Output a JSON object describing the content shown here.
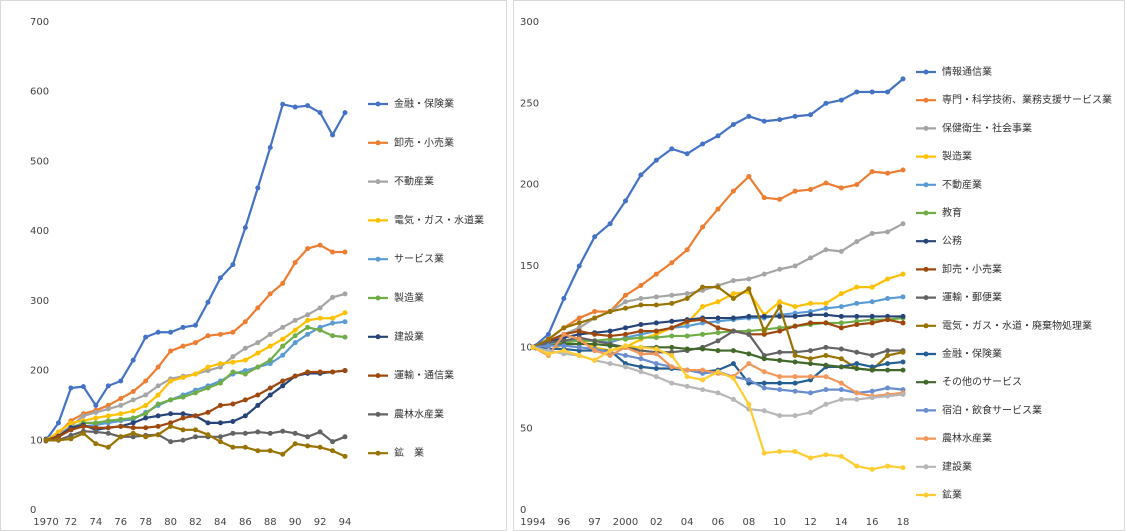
{
  "chart_data": [
    {
      "type": "line",
      "legend": "right",
      "categories": [
        "1970",
        null,
        "72",
        null,
        "74",
        null,
        "76",
        null,
        "78",
        null,
        "80",
        null,
        "82",
        null,
        "84",
        null,
        "86",
        null,
        "88",
        null,
        "90",
        null,
        "92",
        null,
        "94"
      ],
      "ylim": [
        0,
        700
      ],
      "yticks": [
        0,
        100,
        200,
        300,
        400,
        500,
        600,
        700
      ],
      "series": [
        {
          "name": "金融・保険業",
          "color": "#4472c4",
          "values": [
            100,
            125,
            175,
            177,
            150,
            178,
            185,
            215,
            248,
            255,
            255,
            262,
            265,
            298,
            333,
            352,
            405,
            462,
            520,
            582,
            578,
            580,
            570,
            538,
            570
          ]
        },
        {
          "name": "卸売・小売業",
          "color": "#ed7d31",
          "values": [
            100,
            110,
            128,
            138,
            143,
            150,
            160,
            170,
            185,
            205,
            228,
            235,
            240,
            250,
            252,
            255,
            270,
            290,
            310,
            325,
            355,
            375,
            380,
            370,
            370
          ]
        },
        {
          "name": "不動産業",
          "color": "#a5a5a5",
          "values": [
            100,
            108,
            120,
            135,
            140,
            145,
            150,
            158,
            165,
            178,
            188,
            192,
            195,
            200,
            205,
            220,
            232,
            240,
            252,
            262,
            272,
            280,
            290,
            305,
            310
          ]
        },
        {
          "name": "電気・ガス・水道業",
          "color": "#ffc000",
          "values": [
            100,
            112,
            125,
            128,
            132,
            135,
            138,
            142,
            150,
            165,
            185,
            190,
            195,
            205,
            210,
            212,
            215,
            225,
            235,
            245,
            258,
            272,
            275,
            275,
            283
          ]
        },
        {
          "name": "サービス業",
          "color": "#5b9bd5",
          "values": [
            100,
            105,
            115,
            120,
            122,
            125,
            128,
            130,
            140,
            150,
            158,
            165,
            172,
            178,
            185,
            195,
            200,
            205,
            210,
            222,
            240,
            252,
            262,
            268,
            270
          ]
        },
        {
          "name": "製造業",
          "color": "#70ad47",
          "values": [
            100,
            104,
            118,
            125,
            125,
            128,
            130,
            132,
            138,
            152,
            158,
            162,
            168,
            175,
            182,
            198,
            195,
            205,
            215,
            235,
            250,
            262,
            258,
            250,
            248
          ]
        },
        {
          "name": "建設業",
          "color": "#264478",
          "values": [
            100,
            106,
            118,
            122,
            115,
            118,
            120,
            125,
            132,
            135,
            138,
            138,
            135,
            125,
            125,
            127,
            135,
            150,
            165,
            178,
            192,
            196,
            196,
            198,
            200
          ]
        },
        {
          "name": "運輸・通信業",
          "color": "#9e480e",
          "values": [
            100,
            105,
            115,
            120,
            118,
            118,
            120,
            118,
            118,
            120,
            125,
            132,
            135,
            140,
            150,
            152,
            158,
            165,
            175,
            185,
            192,
            198,
            198,
            198,
            200
          ]
        },
        {
          "name": "農林水産業",
          "color": "#636363",
          "values": [
            100,
            100,
            107,
            113,
            112,
            110,
            105,
            105,
            107,
            108,
            98,
            100,
            105,
            105,
            105,
            110,
            110,
            112,
            110,
            113,
            110,
            105,
            112,
            98,
            105
          ]
        },
        {
          "name": "鉱　業",
          "color": "#997300",
          "values": [
            100,
            100,
            102,
            110,
            95,
            90,
            105,
            110,
            105,
            108,
            120,
            115,
            115,
            108,
            98,
            90,
            90,
            85,
            85,
            80,
            95,
            92,
            90,
            85,
            77
          ]
        }
      ]
    },
    {
      "type": "line",
      "legend": "right",
      "categories": [
        "1994",
        null,
        "96",
        null,
        "97",
        null,
        "2000",
        null,
        "02",
        null,
        "04",
        null,
        "06",
        null,
        "08",
        null,
        "10",
        null,
        "12",
        null,
        "14",
        null,
        "16",
        null,
        "18"
      ],
      "ylim": [
        0,
        300
      ],
      "yticks": [
        0,
        50,
        100,
        150,
        200,
        250,
        300
      ],
      "series": [
        {
          "name": "情報通信業",
          "color": "#4472c4",
          "values": [
            100,
            108,
            130,
            150,
            168,
            176,
            190,
            206,
            215,
            222,
            219,
            225,
            230,
            237,
            242,
            239,
            240,
            242,
            243,
            250,
            252,
            257,
            257,
            257,
            265
          ]
        },
        {
          "name": "専門・科学技術、業務支援サービス業",
          "color": "#ed7d31",
          "values": [
            100,
            105,
            112,
            118,
            122,
            122,
            132,
            138,
            145,
            152,
            160,
            174,
            185,
            196,
            205,
            192,
            191,
            196,
            197,
            201,
            198,
            200,
            208,
            207,
            209
          ]
        },
        {
          "name": "保健衛生・社会事業",
          "color": "#a5a5a5",
          "values": [
            100,
            104,
            108,
            112,
            118,
            122,
            128,
            130,
            131,
            132,
            133,
            135,
            138,
            141,
            142,
            145,
            148,
            150,
            155,
            160,
            159,
            165,
            170,
            171,
            176
          ]
        },
        {
          "name": "製造業",
          "color": "#ffc000",
          "values": [
            100,
            98,
            102,
            105,
            100,
            98,
            100,
            105,
            108,
            112,
            115,
            125,
            128,
            133,
            134,
            120,
            128,
            125,
            127,
            127,
            133,
            137,
            137,
            142,
            145
          ]
        },
        {
          "name": "不動産業",
          "color": "#5b9bd5",
          "values": [
            100,
            102,
            104,
            105,
            104,
            103,
            106,
            108,
            110,
            112,
            113,
            115,
            116,
            117,
            118,
            118,
            120,
            121,
            122,
            124,
            125,
            127,
            128,
            130,
            131
          ]
        },
        {
          "name": "教育",
          "color": "#70ad47",
          "values": [
            100,
            101,
            103,
            104,
            104,
            105,
            105,
            106,
            106,
            107,
            107,
            108,
            109,
            110,
            110,
            111,
            112,
            113,
            114,
            115,
            115,
            116,
            117,
            117,
            118
          ]
        },
        {
          "name": "公務",
          "color": "#264478",
          "values": [
            100,
            103,
            106,
            108,
            109,
            110,
            112,
            114,
            115,
            116,
            117,
            118,
            118,
            118,
            119,
            119,
            119,
            119,
            120,
            120,
            119,
            119,
            119,
            119,
            119
          ]
        },
        {
          "name": "卸売・小売業",
          "color": "#9e480e",
          "values": [
            100,
            104,
            108,
            110,
            108,
            107,
            108,
            110,
            110,
            112,
            116,
            117,
            112,
            110,
            108,
            108,
            110,
            113,
            115,
            115,
            112,
            114,
            115,
            117,
            115
          ]
        },
        {
          "name": "運輸・郵便業",
          "color": "#636363",
          "values": [
            100,
            103,
            104,
            106,
            104,
            102,
            100,
            98,
            97,
            97,
            98,
            100,
            104,
            110,
            108,
            95,
            97,
            97,
            98,
            100,
            99,
            97,
            95,
            98,
            98
          ]
        },
        {
          "name": "電気・ガス・水道・廃棄物処理業",
          "color": "#997300",
          "values": [
            100,
            105,
            112,
            115,
            118,
            122,
            124,
            126,
            126,
            127,
            130,
            137,
            137,
            130,
            136,
            110,
            125,
            95,
            93,
            95,
            93,
            87,
            86,
            95,
            97
          ]
        },
        {
          "name": "金融・保険業",
          "color": "#255e91",
          "values": [
            100,
            99,
            99,
            98,
            98,
            98,
            90,
            88,
            87,
            87,
            86,
            85,
            86,
            90,
            78,
            78,
            78,
            78,
            80,
            88,
            88,
            90,
            88,
            90,
            91
          ]
        },
        {
          "name": "その他のサービス",
          "color": "#43682b",
          "values": [
            100,
            101,
            102,
            102,
            102,
            101,
            100,
            100,
            100,
            100,
            99,
            99,
            98,
            98,
            96,
            93,
            92,
            91,
            90,
            89,
            88,
            87,
            86,
            86,
            86
          ]
        },
        {
          "name": "宿泊・飲食サービス業",
          "color": "#698ed0",
          "values": [
            100,
            101,
            101,
            100,
            99,
            97,
            95,
            93,
            90,
            88,
            86,
            84,
            85,
            82,
            80,
            75,
            74,
            73,
            72,
            74,
            74,
            72,
            73,
            75,
            74
          ]
        },
        {
          "name": "農林水産業",
          "color": "#f1975a",
          "values": [
            100,
            95,
            108,
            105,
            98,
            95,
            100,
            96,
            96,
            88,
            86,
            86,
            84,
            82,
            90,
            85,
            82,
            82,
            82,
            82,
            78,
            72,
            70,
            71,
            72
          ]
        },
        {
          "name": "建設業",
          "color": "#b7b7b7",
          "values": [
            100,
            98,
            96,
            95,
            92,
            90,
            88,
            85,
            82,
            78,
            76,
            74,
            72,
            68,
            62,
            61,
            58,
            58,
            60,
            65,
            68,
            68,
            69,
            70,
            71
          ]
        },
        {
          "name": "鉱業",
          "color": "#ffcd33",
          "values": [
            100,
            96,
            98,
            95,
            92,
            98,
            101,
            100,
            99,
            95,
            82,
            80,
            85,
            81,
            65,
            35,
            36,
            36,
            32,
            34,
            33,
            27,
            25,
            27,
            26
          ]
        }
      ]
    }
  ]
}
